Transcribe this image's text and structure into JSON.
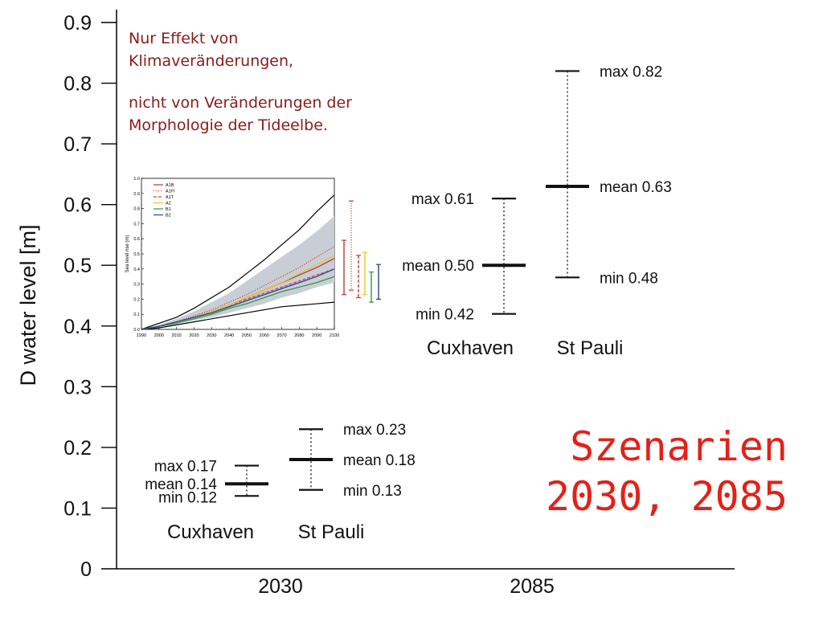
{
  "chart_data": [
    {
      "type": "error_bar",
      "title": "",
      "xlabel": "",
      "ylabel": "D water level  [m]",
      "ylim": [
        0,
        0.9
      ],
      "yticks": [
        "0",
        "0.1",
        "0.2",
        "0.3",
        "0.4",
        "0.5",
        "0.6",
        "0.7",
        "0.8",
        "0.9"
      ],
      "xticks": [
        "2030",
        "2085"
      ],
      "grid": false,
      "groups": [
        {
          "year": "2030",
          "stations": [
            {
              "name": "Cuxhaven",
              "min": 0.12,
              "mean": 0.14,
              "max": 0.17,
              "labels": {
                "max": "max 0.17",
                "mean": "mean 0.14",
                "min": "min 0.12"
              }
            },
            {
              "name": "St Pauli",
              "min": 0.13,
              "mean": 0.18,
              "max": 0.23,
              "labels": {
                "max": "max 0.23",
                "mean": "mean 0.18",
                "min": "min 0.13"
              }
            }
          ]
        },
        {
          "year": "2085",
          "stations": [
            {
              "name": "Cuxhaven",
              "min": 0.42,
              "mean": 0.5,
              "max": 0.61,
              "labels": {
                "max": "max 0.61",
                "mean": "mean 0.50",
                "min": "min 0.42"
              }
            },
            {
              "name": "St Pauli",
              "min": 0.48,
              "mean": 0.63,
              "max": 0.82,
              "labels": {
                "max": "max 0.82",
                "mean": "mean 0.63",
                "min": "min 0.48"
              }
            }
          ]
        }
      ]
    },
    {
      "type": "line",
      "title": "",
      "xlabel": "",
      "ylabel": "Sea level rise (m)",
      "xlim": [
        1990,
        2100
      ],
      "ylim": [
        0,
        1.0
      ],
      "xticks": [
        "1990",
        "2000",
        "2010",
        "2020",
        "2030",
        "2040",
        "2050",
        "2060",
        "2070",
        "2080",
        "2090",
        "2100"
      ],
      "yticks": [
        "0.0",
        "0.1",
        "0.2",
        "0.3",
        "0.4",
        "0.5",
        "0.6",
        "0.7",
        "0.8",
        "0.9",
        "1.0"
      ],
      "x": [
        1990,
        2000,
        2010,
        2020,
        2030,
        2040,
        2050,
        2060,
        2070,
        2080,
        2090,
        2100
      ],
      "envelope_upper": [
        0.0,
        0.03,
        0.07,
        0.12,
        0.18,
        0.24,
        0.32,
        0.4,
        0.48,
        0.56,
        0.65,
        0.75
      ],
      "envelope_lower": [
        0.0,
        0.02,
        0.04,
        0.06,
        0.08,
        0.11,
        0.14,
        0.17,
        0.21,
        0.24,
        0.28,
        0.31
      ],
      "outer_upper": [
        0.0,
        0.04,
        0.08,
        0.14,
        0.21,
        0.28,
        0.37,
        0.46,
        0.56,
        0.66,
        0.78,
        0.89
      ],
      "outer_lower": [
        0.0,
        0.01,
        0.03,
        0.05,
        0.07,
        0.09,
        0.11,
        0.13,
        0.15,
        0.16,
        0.17,
        0.18
      ],
      "series": [
        {
          "name": "A1B",
          "color": "#a83a4a",
          "dash": "",
          "values": [
            0.0,
            0.02,
            0.05,
            0.08,
            0.12,
            0.16,
            0.21,
            0.26,
            0.31,
            0.36,
            0.41,
            0.47
          ]
        },
        {
          "name": "A1FI",
          "color": "#c0392b",
          "dash": "1,2",
          "values": [
            0.0,
            0.02,
            0.05,
            0.09,
            0.13,
            0.18,
            0.23,
            0.29,
            0.35,
            0.41,
            0.48,
            0.55
          ]
        },
        {
          "name": "A1T",
          "color": "#d94040",
          "dash": "4,2",
          "values": [
            0.0,
            0.02,
            0.05,
            0.08,
            0.12,
            0.16,
            0.2,
            0.24,
            0.28,
            0.32,
            0.36,
            0.4
          ]
        },
        {
          "name": "A2",
          "color": "#e8c62a",
          "dash": "",
          "values": [
            0.0,
            0.02,
            0.05,
            0.08,
            0.12,
            0.16,
            0.21,
            0.26,
            0.31,
            0.37,
            0.43,
            0.49
          ]
        },
        {
          "name": "B1",
          "color": "#2e9a3a",
          "dash": "",
          "values": [
            0.0,
            0.02,
            0.04,
            0.07,
            0.1,
            0.14,
            0.17,
            0.21,
            0.25,
            0.28,
            0.31,
            0.35
          ]
        },
        {
          "name": "B2",
          "color": "#2d3f9a",
          "dash": "",
          "values": [
            0.0,
            0.02,
            0.05,
            0.08,
            0.11,
            0.15,
            0.19,
            0.23,
            0.27,
            0.31,
            0.35,
            0.4
          ]
        }
      ],
      "range_bars": [
        {
          "color": "#c0392b",
          "dash": "",
          "min": 0.23,
          "max": 0.59
        },
        {
          "color": "#c0392b",
          "dash": "1,2",
          "min": 0.26,
          "max": 0.85
        },
        {
          "color": "#c0392b",
          "dash": "4,2",
          "min": 0.21,
          "max": 0.49
        },
        {
          "color": "#e8c62a",
          "dash": "",
          "min": 0.23,
          "max": 0.51
        },
        {
          "color": "#2e9a3a",
          "dash": "",
          "min": 0.18,
          "max": 0.38
        },
        {
          "color": "#2d3f9a",
          "dash": "",
          "min": 0.2,
          "max": 0.43
        }
      ]
    }
  ],
  "annotations": {
    "note_line1": "Nur Effekt von",
    "note_line2": "Klimaveränderungen,",
    "note_line3": "nicht von Veränderungen der",
    "note_line4": "Morphologie der Tideelbe.",
    "scenario_line1": "Szenarien",
    "scenario_line2": "2030, 2085"
  },
  "colors": {
    "note": "#8b1a1a",
    "scenario": "#e32119",
    "envelope": "#c9ced6",
    "axis": "#000000"
  }
}
